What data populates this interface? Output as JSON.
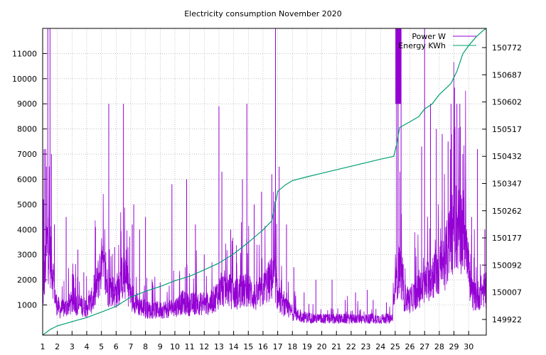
{
  "chart_data": {
    "type": "line",
    "title": "Electricity consumption November 2020",
    "x": {
      "ticks": [
        1,
        2,
        3,
        4,
        5,
        6,
        7,
        8,
        9,
        10,
        11,
        12,
        13,
        14,
        15,
        16,
        17,
        18,
        19,
        20,
        21,
        22,
        23,
        24,
        25,
        26,
        27,
        28,
        29,
        30
      ],
      "range": [
        1,
        31.2
      ]
    },
    "y_left": {
      "ticks": [
        1000,
        2000,
        3000,
        4000,
        5000,
        6000,
        7000,
        8000,
        9000,
        10000,
        11000
      ],
      "range": [
        -200,
        12000
      ]
    },
    "y_right": {
      "ticks": [
        149922,
        150007,
        150092,
        150177,
        150262,
        150347,
        150432,
        150517,
        150602,
        150687,
        150772
      ],
      "range": [
        149873,
        150832
      ]
    },
    "grid": true,
    "legend_position": "top-right",
    "series": [
      {
        "name": "Power W",
        "axis": "left",
        "color": "#9400d3",
        "base": [
          [
            1,
            1200
          ],
          [
            1.3,
            3500
          ],
          [
            1.6,
            2800
          ],
          [
            1.9,
            1100
          ],
          [
            2.2,
            800
          ],
          [
            2.6,
            900
          ],
          [
            3.0,
            1100
          ],
          [
            3.5,
            1000
          ],
          [
            4.0,
            900
          ],
          [
            4.5,
            1300
          ],
          [
            5.0,
            2600
          ],
          [
            5.5,
            1600
          ],
          [
            6.0,
            1500
          ],
          [
            6.5,
            2200
          ],
          [
            7.0,
            1400
          ],
          [
            7.5,
            1000
          ],
          [
            8.0,
            800
          ],
          [
            8.5,
            800
          ],
          [
            9.0,
            800
          ],
          [
            9.5,
            850
          ],
          [
            10.0,
            900
          ],
          [
            10.5,
            1100
          ],
          [
            11.0,
            1000
          ],
          [
            11.5,
            1100
          ],
          [
            12.0,
            1000
          ],
          [
            12.5,
            1100
          ],
          [
            13.0,
            1500
          ],
          [
            13.5,
            1700
          ],
          [
            14.0,
            1400
          ],
          [
            14.5,
            1500
          ],
          [
            15.0,
            1600
          ],
          [
            15.5,
            1300
          ],
          [
            16.0,
            1600
          ],
          [
            16.5,
            2000
          ],
          [
            16.8,
            2100
          ],
          [
            17.0,
            1300
          ],
          [
            17.5,
            900
          ],
          [
            18.0,
            700
          ],
          [
            18.5,
            550
          ],
          [
            19.0,
            500
          ],
          [
            20.0,
            450
          ],
          [
            21.0,
            450
          ],
          [
            22.0,
            450
          ],
          [
            23.0,
            450
          ],
          [
            24.0,
            450
          ],
          [
            24.8,
            460
          ],
          [
            25.0,
            1800
          ],
          [
            25.3,
            2600
          ],
          [
            25.6,
            1300
          ],
          [
            26.0,
            1200
          ],
          [
            26.5,
            1500
          ],
          [
            27.0,
            1800
          ],
          [
            27.5,
            2200
          ],
          [
            28.0,
            2300
          ],
          [
            28.5,
            3000
          ],
          [
            29.0,
            4200
          ],
          [
            29.5,
            4000
          ],
          [
            29.9,
            3800
          ],
          [
            30.1,
            1500
          ],
          [
            30.5,
            1300
          ],
          [
            31.0,
            1600
          ],
          [
            31.2,
            1500
          ]
        ],
        "spikes": [
          [
            1.05,
            5200
          ],
          [
            1.1,
            7200
          ],
          [
            1.2,
            7200
          ],
          [
            1.25,
            6500
          ],
          [
            1.35,
            12000
          ],
          [
            1.5,
            12000
          ],
          [
            1.6,
            7000
          ],
          [
            1.8,
            4200
          ],
          [
            2.6,
            4500
          ],
          [
            3.1,
            2200
          ],
          [
            3.4,
            3200
          ],
          [
            3.8,
            2300
          ],
          [
            4.5,
            2200
          ],
          [
            4.6,
            4100
          ],
          [
            5.5,
            9000
          ],
          [
            5.9,
            3300
          ],
          [
            6.5,
            9000
          ],
          [
            6.7,
            3200
          ],
          [
            7.1,
            4200
          ],
          [
            7.2,
            5000
          ],
          [
            7.6,
            4000
          ],
          [
            8.0,
            4500
          ],
          [
            9.0,
            1900
          ],
          [
            9.8,
            5800
          ],
          [
            10.8,
            6000
          ],
          [
            11.4,
            4200
          ],
          [
            12.0,
            3000
          ],
          [
            13.0,
            8900
          ],
          [
            13.2,
            6300
          ],
          [
            13.8,
            4000
          ],
          [
            14.6,
            6000
          ],
          [
            14.9,
            9000
          ],
          [
            15.4,
            5000
          ],
          [
            15.9,
            5500
          ],
          [
            16.6,
            6200
          ],
          [
            16.85,
            12000
          ],
          [
            17.1,
            6500
          ],
          [
            17.6,
            4200
          ],
          [
            18.1,
            2500
          ],
          [
            18.8,
            1500
          ],
          [
            19.6,
            2000
          ],
          [
            20.7,
            2000
          ],
          [
            21.6,
            1200
          ],
          [
            22.3,
            1500
          ],
          [
            23.1,
            1600
          ],
          [
            23.5,
            1200
          ],
          [
            24.4,
            1100
          ],
          [
            25.1,
            12000
          ],
          [
            25.2,
            12000
          ],
          [
            25.4,
            12000
          ],
          [
            26.8,
            7300
          ],
          [
            27.0,
            12000
          ],
          [
            27.4,
            9000
          ],
          [
            27.8,
            8000
          ],
          [
            28.2,
            7800
          ],
          [
            28.6,
            7500
          ],
          [
            28.8,
            9000
          ],
          [
            29.0,
            7200
          ],
          [
            29.2,
            9000
          ],
          [
            29.4,
            9000
          ],
          [
            29.6,
            7000
          ],
          [
            29.8,
            6000
          ],
          [
            30.2,
            4500
          ],
          [
            30.6,
            7200
          ],
          [
            31.1,
            4000
          ]
        ]
      },
      {
        "name": "Energy KWh",
        "axis": "right",
        "color": "#009e73",
        "values": [
          [
            1,
            149873
          ],
          [
            1.5,
            149890
          ],
          [
            2,
            149902
          ],
          [
            3,
            149915
          ],
          [
            4,
            149928
          ],
          [
            5,
            149945
          ],
          [
            6,
            149963
          ],
          [
            7,
            149992
          ],
          [
            8,
            150010
          ],
          [
            9,
            150025
          ],
          [
            10,
            150043
          ],
          [
            11,
            150057
          ],
          [
            12,
            150077
          ],
          [
            13,
            150098
          ],
          [
            14,
            150127
          ],
          [
            15,
            150163
          ],
          [
            16,
            150202
          ],
          [
            16.6,
            150230
          ],
          [
            17,
            150322
          ],
          [
            17.5,
            150342
          ],
          [
            18,
            150356
          ],
          [
            19,
            150368
          ],
          [
            20,
            150379
          ],
          [
            21,
            150390
          ],
          [
            22,
            150401
          ],
          [
            23,
            150412
          ],
          [
            24,
            150423
          ],
          [
            24.9,
            150432
          ],
          [
            25.1,
            150470
          ],
          [
            25.3,
            150522
          ],
          [
            26,
            150540
          ],
          [
            26.6,
            150556
          ],
          [
            27,
            150580
          ],
          [
            27.5,
            150595
          ],
          [
            28,
            150625
          ],
          [
            28.8,
            150660
          ],
          [
            29.2,
            150698
          ],
          [
            29.6,
            150752
          ],
          [
            30,
            150778
          ],
          [
            30.5,
            150805
          ],
          [
            31,
            150826
          ],
          [
            31.2,
            150832
          ]
        ]
      }
    ]
  }
}
